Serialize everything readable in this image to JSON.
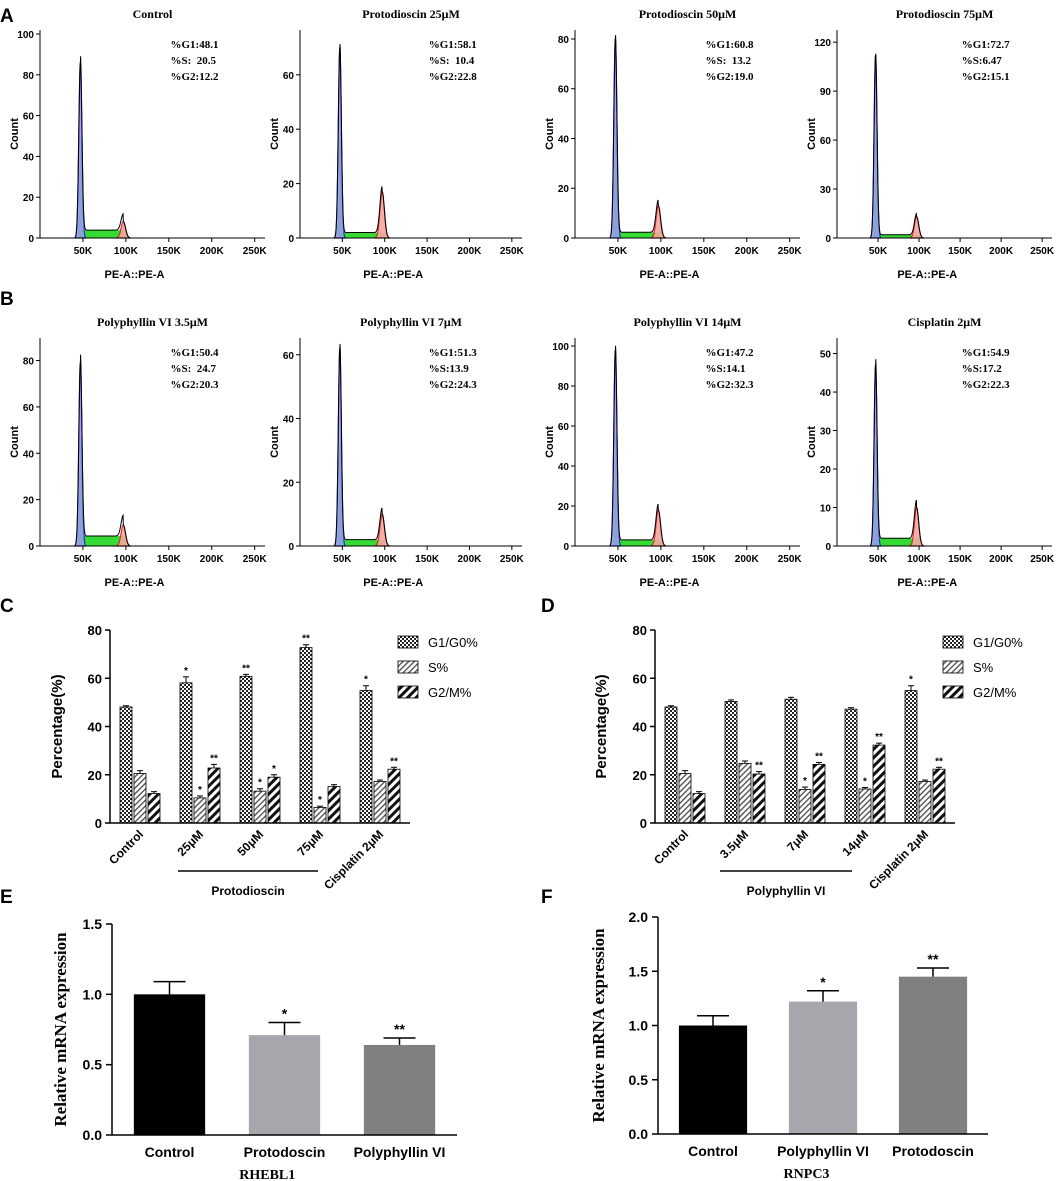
{
  "panel_labels": [
    "A",
    "B",
    "C",
    "D",
    "E",
    "F"
  ],
  "chart_data": [
    {
      "panel": "A",
      "type": "histogram",
      "title": "Control",
      "xlabel": "PE-A::PE-A",
      "ylabel": "Count",
      "ymax": 100,
      "yticks": [
        "0",
        "20",
        "40",
        "60",
        "80",
        "100"
      ],
      "xticks": [
        "50K",
        "100K",
        "150K",
        "200K",
        "250K"
      ],
      "g1_peak": 86,
      "g2_peak": 8,
      "stats": [
        "%G1:48.1",
        "%S:  20.5",
        "%G2:12.2"
      ]
    },
    {
      "panel": "A",
      "type": "histogram",
      "title": "Protodioscin 25μM",
      "xlabel": "PE-A::PE-A",
      "ylabel": "Count",
      "ymax": 75,
      "yticks": [
        "0",
        "20",
        "40",
        "60"
      ],
      "xticks": [
        "50K",
        "100K",
        "150K",
        "200K",
        "250K"
      ],
      "g1_peak": 70,
      "g2_peak": 17,
      "stats": [
        "%G1:58.1",
        "%S:  10.4",
        "%G2:22.8"
      ]
    },
    {
      "panel": "A",
      "type": "histogram",
      "title": "Protodioscin 50μM",
      "xlabel": "PE-A::PE-A",
      "ylabel": "Count",
      "ymax": 82,
      "yticks": [
        "0",
        "20",
        "40",
        "60",
        "80"
      ],
      "xticks": [
        "50K",
        "100K",
        "150K",
        "200K",
        "250K"
      ],
      "g1_peak": 80,
      "g2_peak": 13,
      "stats": [
        "%G1:60.8",
        "%S:  13.2",
        "%G2:19.0"
      ]
    },
    {
      "panel": "A",
      "type": "histogram",
      "title": "Protodioscin 75μM",
      "xlabel": "PE-A::PE-A",
      "ylabel": "Count",
      "ymax": 125,
      "yticks": [
        "0",
        "30",
        "60",
        "90",
        "120"
      ],
      "xticks": [
        "50K",
        "100K",
        "150K",
        "200K",
        "250K"
      ],
      "g1_peak": 112,
      "g2_peak": 13,
      "stats": [
        "%G1:72.7",
        "%S:6.47",
        "%G2:15.1"
      ]
    },
    {
      "panel": "B",
      "type": "histogram",
      "title": "Polyphyllin VI 3.5μM",
      "xlabel": "PE-A::PE-A",
      "ylabel": "Count",
      "ymax": 88,
      "yticks": [
        "0",
        "20",
        "40",
        "60",
        "80"
      ],
      "xticks": [
        "50K",
        "100K",
        "150K",
        "200K",
        "250K"
      ],
      "g1_peak": 79,
      "g2_peak": 9,
      "stats": [
        "%G1:50.4",
        "%S:  24.7",
        "%G2:20.3"
      ]
    },
    {
      "panel": "B",
      "type": "histogram",
      "title": "Polyphyllin VI 7μM",
      "xlabel": "PE-A::PE-A",
      "ylabel": "Count",
      "ymax": 64,
      "yticks": [
        "0",
        "20",
        "40",
        "60"
      ],
      "xticks": [
        "50K",
        "100K",
        "150K",
        "200K",
        "250K"
      ],
      "g1_peak": 62,
      "g2_peak": 10,
      "stats": [
        "%G1:51.3",
        "%S:13.9",
        "%G2:24.3"
      ]
    },
    {
      "panel": "B",
      "type": "histogram",
      "title": "Polyphyllin VI 14μM",
      "xlabel": "PE-A::PE-A",
      "ylabel": "Count",
      "ymax": 102,
      "yticks": [
        "0",
        "20",
        "40",
        "60",
        "80",
        "100"
      ],
      "xticks": [
        "50K",
        "100K",
        "150K",
        "200K",
        "250K"
      ],
      "g1_peak": 98,
      "g2_peak": 18,
      "stats": [
        "%G1:47.2",
        "%S:14.1",
        "%G2:32.3"
      ]
    },
    {
      "panel": "B",
      "type": "histogram",
      "title": "Cisplatin 2μM",
      "xlabel": "PE-A::PE-A",
      "ylabel": "Count",
      "ymax": 53,
      "yticks": [
        "0",
        "10",
        "20",
        "30",
        "40",
        "50"
      ],
      "xticks": [
        "50K",
        "100K",
        "150K",
        "200K",
        "250K"
      ],
      "g1_peak": 47,
      "g2_peak": 10,
      "stats": [
        "%G1:54.9",
        "%S:17.2",
        "%G2:22.3"
      ]
    },
    {
      "panel": "C",
      "type": "bar",
      "ylabel": "Percentage(%)",
      "ylim": [
        0,
        80
      ],
      "yticks": [
        "0",
        "20",
        "40",
        "60",
        "80"
      ],
      "categories": [
        "Control",
        "25μM",
        "50μM",
        "75μM",
        "Cisplatin 2μM"
      ],
      "group_label": "Protodioscin",
      "series": [
        {
          "name": "G1/G0%",
          "values": [
            48.1,
            58.1,
            60.8,
            72.7,
            54.9
          ],
          "errors": [
            0.5,
            2.5,
            0.8,
            1.2,
            2.0
          ],
          "sig": [
            "",
            "*",
            "**",
            "**",
            "*"
          ]
        },
        {
          "name": "S%",
          "values": [
            20.5,
            10.4,
            13.2,
            6.47,
            17.2
          ],
          "errors": [
            1.2,
            0.8,
            1.0,
            0.5,
            0.6
          ],
          "sig": [
            "",
            "*",
            "*",
            "*",
            ""
          ]
        },
        {
          "name": "G2/M%",
          "values": [
            12.2,
            22.8,
            19.0,
            15.1,
            22.3
          ],
          "errors": [
            0.8,
            1.5,
            1.0,
            0.8,
            0.8
          ],
          "sig": [
            "",
            "**",
            "*",
            "",
            "**"
          ]
        }
      ]
    },
    {
      "panel": "D",
      "type": "bar",
      "ylabel": "Percentage(%)",
      "ylim": [
        0,
        80
      ],
      "yticks": [
        "0",
        "20",
        "40",
        "60",
        "80"
      ],
      "categories": [
        "Control",
        "3.5μM",
        "7μM",
        "14μM",
        "Cisplatin 2μM"
      ],
      "group_label": "Polyphyllin VI",
      "series": [
        {
          "name": "G1/G0%",
          "values": [
            48.1,
            50.4,
            51.3,
            47.2,
            54.9
          ],
          "errors": [
            0.5,
            0.6,
            0.8,
            0.6,
            2.0
          ],
          "sig": [
            "",
            "",
            "",
            "",
            "*"
          ]
        },
        {
          "name": "S%",
          "values": [
            20.5,
            24.7,
            13.9,
            14.1,
            17.2
          ],
          "errors": [
            1.2,
            1.0,
            1.0,
            0.6,
            0.6
          ],
          "sig": [
            "",
            "",
            "*",
            "*",
            ""
          ]
        },
        {
          "name": "G2/M%",
          "values": [
            12.2,
            20.3,
            24.3,
            32.3,
            22.3
          ],
          "errors": [
            0.8,
            1.0,
            0.8,
            0.8,
            0.8
          ],
          "sig": [
            "",
            "**",
            "**",
            "**",
            "**"
          ]
        }
      ]
    },
    {
      "panel": "E",
      "type": "bar",
      "ylabel": "Relative mRNA expression",
      "xlabel": "RHEBL1",
      "ylim": [
        0,
        1.5
      ],
      "yticks": [
        "0.0",
        "0.5",
        "1.0",
        "1.5"
      ],
      "categories": [
        "Control",
        "Protodoscin",
        "Polyphyllin VI"
      ],
      "values": [
        1.0,
        0.71,
        0.64
      ],
      "errors": [
        0.09,
        0.09,
        0.05
      ],
      "sig": [
        "",
        "*",
        "**"
      ],
      "colors": [
        "#000000",
        "#a6a6ac",
        "#808080"
      ]
    },
    {
      "panel": "F",
      "type": "bar",
      "ylabel": "Relative mRNA expression",
      "xlabel": "RNPC3",
      "ylim": [
        0,
        2.0
      ],
      "yticks": [
        "0.0",
        "0.5",
        "1.0",
        "1.5",
        "2.0"
      ],
      "categories": [
        "Control",
        "Polyphyllin VI",
        "Protodoscin"
      ],
      "values": [
        1.0,
        1.22,
        1.45
      ],
      "errors": [
        0.09,
        0.1,
        0.08
      ],
      "sig": [
        "",
        "*",
        "**"
      ],
      "colors": [
        "#000000",
        "#a6a6ac",
        "#808080"
      ]
    }
  ]
}
